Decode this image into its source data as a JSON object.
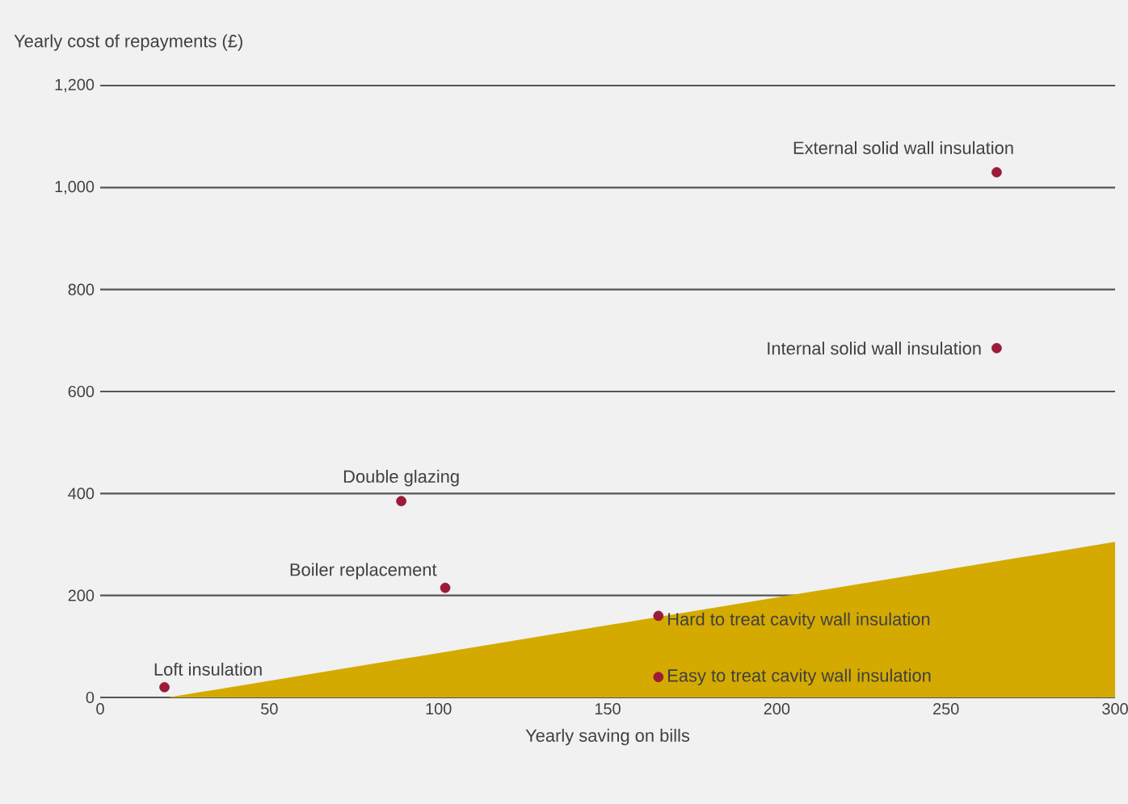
{
  "chart_data": {
    "type": "scatter",
    "xlabel": "Yearly saving on bills",
    "ylabel": "Yearly cost of repayments (£)",
    "xlim": [
      0,
      300
    ],
    "ylim": [
      0,
      1200
    ],
    "xticks": [
      0,
      50,
      100,
      150,
      200,
      250,
      300
    ],
    "yticks": [
      0,
      200,
      400,
      600,
      800,
      {
        "value": 1000,
        "label": "1,000"
      },
      {
        "value": 1200,
        "label": "1,200"
      }
    ],
    "grid": "y",
    "series": [
      {
        "type": "area",
        "marker": "none",
        "color": "#d4aa00",
        "x": [
          20,
          300
        ],
        "values": [
          0,
          305
        ]
      },
      {
        "marker": "circle",
        "color": "#9b1b3a",
        "x": [
          19,
          102,
          89,
          265,
          265,
          165,
          165
        ],
        "values": [
          20,
          215,
          385,
          1030,
          685,
          160,
          40
        ]
      }
    ],
    "annotations": [
      {
        "text": "Loft insulation",
        "x": 19,
        "y": 20
      },
      {
        "text": "Boiler replacement",
        "x": 102,
        "y": 215
      },
      {
        "text": "Double glazing",
        "x": 89,
        "y": 385
      },
      {
        "text": "External solid wall insulation",
        "x": 265,
        "y": 1030
      },
      {
        "text": "Internal solid wall insulation",
        "x": 265,
        "y": 685
      },
      {
        "text": "Hard to treat cavity wall insulation",
        "x": 165,
        "y": 160
      },
      {
        "text": "Easy to treat cavity wall insulation",
        "x": 165,
        "y": 40
      }
    ]
  }
}
